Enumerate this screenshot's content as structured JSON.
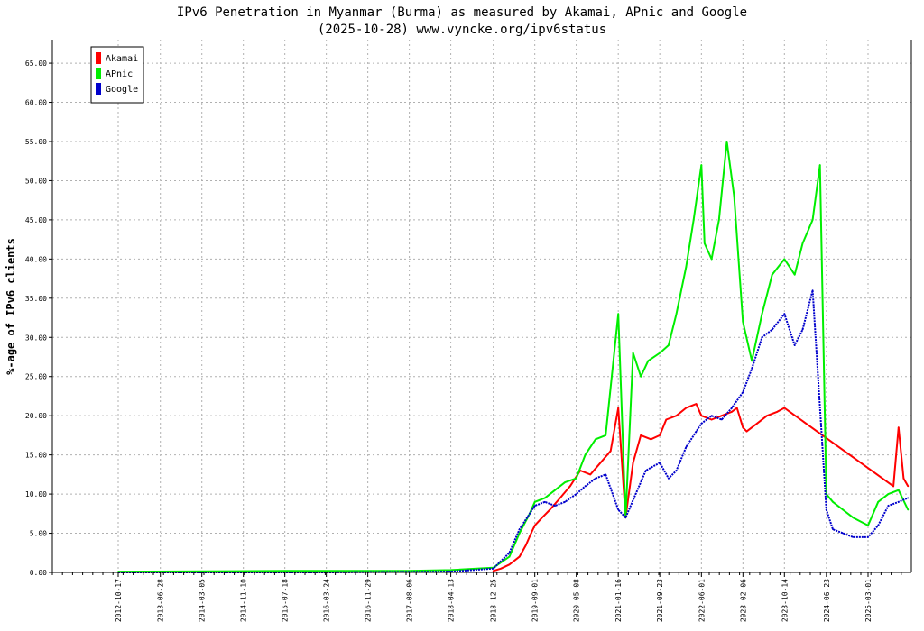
{
  "chart_data": {
    "type": "line",
    "title": "IPv6 Penetration in Myanmar (Burma) as measured by Akamai, APnic and Google",
    "subtitle": "(2025-10-28) www.vyncke.org/ipv6status",
    "xlabel": "",
    "ylabel": "%-age of IPv6 clients",
    "ylim": [
      0,
      68
    ],
    "yticks": [
      "0.00",
      "5.00",
      "10.00",
      "15.00",
      "20.00",
      "25.00",
      "30.00",
      "35.00",
      "40.00",
      "45.00",
      "50.00",
      "55.00",
      "60.00",
      "65.00"
    ],
    "xticks": [
      "2012-10-17",
      "2013-06-28",
      "2014-03-05",
      "2014-11-10",
      "2015-07-18",
      "2016-03-24",
      "2016-11-29",
      "2017-08-06",
      "2018-04-13",
      "2018-12-25",
      "2019-09-01",
      "2020-05-08",
      "2021-01-16",
      "2021-09-23",
      "2022-06-01",
      "2023-02-06",
      "2023-10-14",
      "2024-06-23",
      "2025-03-01"
    ],
    "grid": true,
    "legend_position": "top-left",
    "series": [
      {
        "name": "Akamai",
        "color": "#ff0000",
        "x": [
          "2018-12-25",
          "2019-02-10",
          "2019-04-01",
          "2019-06-01",
          "2019-07-10",
          "2019-08-10",
          "2019-09-01",
          "2019-10-15",
          "2019-12-01",
          "2020-02-01",
          "2020-04-01",
          "2020-06-01",
          "2020-08-01",
          "2020-10-01",
          "2020-12-01",
          "2021-01-16",
          "2021-03-01",
          "2021-04-15",
          "2021-06-01",
          "2021-08-01",
          "2021-09-23",
          "2021-11-01",
          "2022-01-01",
          "2022-03-01",
          "2022-05-01",
          "2022-06-01",
          "2022-08-01",
          "2022-10-01",
          "2022-12-01",
          "2023-01-01",
          "2023-02-06",
          "2023-03-01",
          "2023-05-01",
          "2023-07-01",
          "2023-09-01",
          "2023-10-14",
          "2023-11-15",
          "2025-08-01",
          "2025-09-01",
          "2025-10-01",
          "2025-10-28"
        ],
        "values": [
          0.2,
          0.5,
          1.0,
          2.0,
          3.5,
          5.0,
          6.0,
          7.0,
          8.0,
          9.5,
          11.0,
          13.0,
          12.5,
          14.0,
          15.5,
          21.0,
          7.0,
          14.0,
          17.5,
          17.0,
          17.5,
          19.5,
          20.0,
          21.0,
          21.5,
          20.0,
          19.5,
          20.0,
          20.5,
          21.0,
          18.5,
          18.0,
          19.0,
          20.0,
          20.5,
          21.0,
          20.5,
          11.0,
          18.5,
          12.0,
          11.0
        ]
      },
      {
        "name": "APnic",
        "color": "#00ee00",
        "x": [
          "2012-10-17",
          "2015-07-18",
          "2017-08-06",
          "2018-04-13",
          "2018-12-25",
          "2019-04-01",
          "2019-06-01",
          "2019-08-01",
          "2019-09-01",
          "2019-11-01",
          "2020-01-01",
          "2020-03-01",
          "2020-05-08",
          "2020-07-01",
          "2020-09-01",
          "2020-11-01",
          "2021-01-16",
          "2021-03-01",
          "2021-04-15",
          "2021-06-01",
          "2021-07-15",
          "2021-09-23",
          "2021-11-15",
          "2022-01-01",
          "2022-03-01",
          "2022-04-15",
          "2022-06-01",
          "2022-06-20",
          "2022-08-01",
          "2022-09-15",
          "2022-11-01",
          "2022-12-15",
          "2023-02-06",
          "2023-04-01",
          "2023-06-01",
          "2023-08-01",
          "2023-10-14",
          "2023-12-15",
          "2024-02-01",
          "2024-04-01",
          "2024-05-15",
          "2024-06-23",
          "2024-08-01",
          "2024-10-01",
          "2024-12-01",
          "2025-03-01",
          "2025-05-01",
          "2025-07-01",
          "2025-09-01",
          "2025-10-28"
        ],
        "values": [
          0.1,
          0.2,
          0.2,
          0.3,
          0.6,
          2.0,
          5.0,
          7.5,
          9.0,
          9.5,
          10.5,
          11.5,
          12.0,
          15.0,
          17.0,
          17.5,
          33.0,
          7.0,
          28.0,
          25.0,
          27.0,
          28.0,
          29.0,
          33.0,
          39.0,
          45.0,
          52.0,
          42.0,
          40.0,
          45.0,
          55.0,
          48.0,
          32.0,
          27.0,
          33.0,
          38.0,
          40.0,
          38.0,
          42.0,
          45.0,
          52.0,
          10.0,
          9.0,
          8.0,
          7.0,
          6.0,
          9.0,
          10.0,
          10.5,
          8.0
        ]
      },
      {
        "name": "Google",
        "color": "#0000cc",
        "x": [
          "2012-10-17",
          "2014-03-05",
          "2016-03-24",
          "2018-04-13",
          "2018-12-25",
          "2019-04-01",
          "2019-06-01",
          "2019-08-01",
          "2019-09-01",
          "2019-11-01",
          "2020-01-01",
          "2020-03-01",
          "2020-05-08",
          "2020-07-01",
          "2020-09-01",
          "2020-11-01",
          "2021-01-16",
          "2021-03-01",
          "2021-05-01",
          "2021-07-01",
          "2021-09-23",
          "2021-11-15",
          "2022-01-01",
          "2022-03-01",
          "2022-05-01",
          "2022-06-01",
          "2022-08-01",
          "2022-10-01",
          "2022-12-01",
          "2023-02-06",
          "2023-04-01",
          "2023-06-01",
          "2023-08-01",
          "2023-10-14",
          "2023-12-15",
          "2024-02-01",
          "2024-04-01",
          "2024-06-23",
          "2024-08-01",
          "2024-10-01",
          "2024-12-01",
          "2025-03-01",
          "2025-05-01",
          "2025-07-01",
          "2025-09-01",
          "2025-10-28"
        ],
        "values": [
          0.0,
          0.0,
          0.0,
          0.1,
          0.5,
          2.5,
          5.5,
          7.5,
          8.5,
          9.0,
          8.5,
          9.0,
          10.0,
          11.0,
          12.0,
          12.5,
          8.0,
          7.0,
          10.0,
          13.0,
          14.0,
          12.0,
          13.0,
          16.0,
          18.0,
          19.0,
          20.0,
          19.5,
          21.0,
          23.0,
          26.0,
          30.0,
          31.0,
          33.0,
          29.0,
          31.0,
          36.0,
          8.0,
          5.5,
          5.0,
          4.5,
          4.5,
          6.0,
          8.5,
          9.0,
          9.5
        ]
      }
    ]
  }
}
